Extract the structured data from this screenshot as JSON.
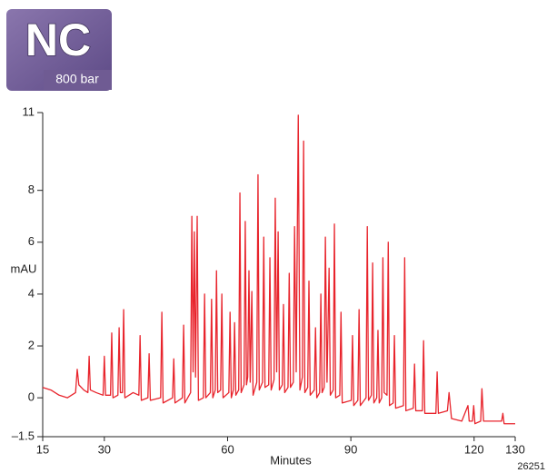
{
  "chart_data": {
    "type": "line",
    "badge_title": "NC",
    "badge_subtitle": "800 bar",
    "xlabel": "Minutes",
    "ylabel": "mAU",
    "figure_id": "26251",
    "xlim": [
      15,
      130
    ],
    "ylim": [
      -1.5,
      11
    ],
    "xticks": [
      15,
      30,
      60,
      90,
      120,
      130
    ],
    "yticks": [
      {
        "value": -1.5,
        "label": "–1.5"
      },
      0,
      2,
      4,
      6,
      8,
      11
    ],
    "grid": false,
    "series": [
      {
        "color": "#e8242c",
        "x": [
          15,
          17,
          19,
          21,
          23,
          23.4,
          23.8,
          25,
          26,
          26.3,
          26.6,
          28,
          29.7,
          30,
          30.3,
          31.5,
          31.8,
          32.1,
          33.3,
          33.6,
          33.9,
          34.4,
          34.7,
          35,
          37,
          38.4,
          38.7,
          39,
          40.6,
          40.9,
          41.2,
          43.7,
          44,
          44.3,
          46.6,
          46.9,
          47.2,
          49,
          49.3,
          49.6,
          51,
          51.3,
          51.6,
          51.9,
          52.2,
          52.6,
          52.9,
          54.1,
          54.4,
          54.7,
          55.8,
          56.1,
          56.4,
          57,
          57.3,
          57.6,
          58.3,
          58.6,
          58.9,
          60.3,
          60.6,
          60.9,
          61.4,
          61.7,
          62,
          62.7,
          63,
          63.3,
          64,
          64.3,
          64.6,
          64.9,
          65.2,
          65.5,
          65.9,
          66.2,
          67.1,
          67.4,
          67.7,
          68.5,
          68.8,
          69.1,
          70,
          70.3,
          70.6,
          71.3,
          71.6,
          71.95,
          72.3,
          72.6,
          73.3,
          73.6,
          73.9,
          74.7,
          75,
          75.3,
          76,
          76.3,
          76.7,
          77.2,
          77.6,
          78.2,
          78.5,
          78.8,
          79.5,
          79.8,
          80.1,
          81.1,
          81.4,
          81.7,
          82.4,
          82.7,
          83,
          83.5,
          83.8,
          84.2,
          84.7,
          85,
          85.7,
          86,
          86.3,
          87.3,
          87.6,
          87.9,
          90.1,
          90.4,
          90.7,
          91.7,
          92,
          92.3,
          93.7,
          94,
          94.3,
          95,
          95.3,
          95.6,
          96.3,
          96.6,
          96.9,
          97.5,
          97.8,
          98.1,
          98.8,
          99.1,
          99.4,
          100.3,
          100.6,
          100.9,
          102.8,
          103.1,
          103.4,
          105.2,
          105.5,
          105.8,
          107.4,
          107.7,
          108,
          110.7,
          111,
          111.3,
          113.5,
          113.9,
          114.5,
          117,
          118.5,
          118.8,
          119.6,
          119.9,
          120.2,
          121.6,
          121.9,
          122.3,
          126.7,
          127,
          127.3,
          130
        ],
        "values": [
          0.4,
          0.3,
          0.1,
          0.0,
          0.2,
          1.1,
          0.5,
          0.3,
          0.2,
          1.6,
          0.3,
          0.2,
          0.1,
          1.6,
          0.1,
          0.1,
          2.5,
          0.0,
          0.1,
          2.7,
          0.2,
          0.2,
          3.4,
          0.0,
          0.2,
          0.1,
          2.4,
          -0.1,
          0.0,
          1.7,
          -0.1,
          0.0,
          3.3,
          -0.2,
          0.0,
          1.5,
          -0.2,
          0.0,
          2.8,
          -0.2,
          0.2,
          7.0,
          1.0,
          6.4,
          0.8,
          7.0,
          -0.1,
          0.0,
          4.0,
          0.0,
          0.2,
          3.8,
          0.0,
          0.3,
          4.9,
          0.2,
          0.3,
          4.0,
          0.0,
          0.2,
          3.3,
          0.0,
          0.3,
          2.9,
          0.1,
          0.3,
          7.9,
          0.2,
          0.5,
          6.8,
          0.5,
          0.8,
          4.9,
          0.6,
          4.1,
          0.1,
          0.6,
          8.6,
          0.3,
          0.6,
          6.2,
          0.4,
          0.5,
          5.4,
          0.3,
          0.7,
          7.7,
          1.0,
          6.4,
          0.3,
          0.5,
          3.6,
          0.2,
          0.4,
          4.8,
          0.4,
          0.6,
          6.6,
          1.0,
          10.9,
          0.3,
          0.8,
          9.9,
          0.2,
          0.4,
          4.5,
          0.1,
          0.3,
          2.7,
          0.0,
          0.2,
          4.0,
          0.2,
          0.4,
          6.2,
          0.6,
          5.0,
          0.1,
          0.3,
          6.7,
          0.0,
          0.1,
          3.3,
          -0.2,
          -0.1,
          2.4,
          -0.3,
          -0.1,
          3.4,
          -0.3,
          0.0,
          6.6,
          -0.1,
          0.1,
          5.2,
          -0.2,
          0.0,
          2.6,
          -0.2,
          0.0,
          5.4,
          0.2,
          0.1,
          6.0,
          -0.3,
          -0.2,
          2.4,
          -0.4,
          -0.3,
          5.4,
          -0.5,
          -0.4,
          1.3,
          -0.5,
          -0.5,
          2.2,
          -0.6,
          -0.6,
          1.0,
          -0.6,
          -0.5,
          0.2,
          -0.8,
          -0.9,
          -0.3,
          -0.9,
          -0.9,
          -0.3,
          -1.0,
          -0.9,
          0.35,
          -0.9,
          -0.9,
          -0.6,
          -1.0,
          -1.0
        ]
      }
    ]
  }
}
